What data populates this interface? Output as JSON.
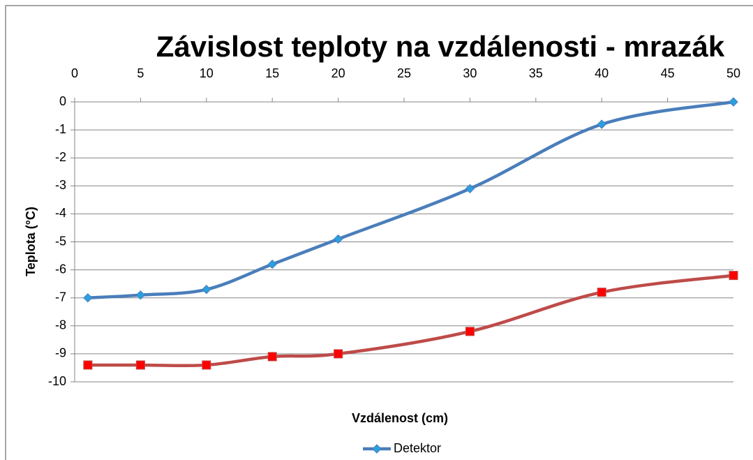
{
  "chart_data": {
    "type": "line",
    "title": "Závislost teploty na vzdálenosti - mrazák",
    "x_label": "Vzdálenost (cm)",
    "y_label": "Teplota (°C)",
    "x": [
      1,
      5,
      10,
      15,
      20,
      30,
      40,
      50
    ],
    "series": [
      {
        "name": "Detektor",
        "color": "#4a7ebb",
        "marker_color": "#2aa0e0",
        "marker": "diamond",
        "values": [
          -7,
          -6.9,
          -6.7,
          -5.8,
          -4.9,
          -3.1,
          -0.8,
          0
        ]
      },
      {
        "color": "#be4b48",
        "marker_color": "#ff0000",
        "marker": "square",
        "values": [
          -9.4,
          -9.4,
          -9.4,
          -9.1,
          -9.0,
          -8.2,
          -6.8,
          -6.2
        ]
      }
    ],
    "xlim": [
      0,
      50
    ],
    "xticks": [
      0,
      5,
      10,
      15,
      20,
      25,
      30,
      35,
      40,
      45,
      50
    ],
    "ylim": [
      -10,
      0
    ],
    "yticks": [
      0,
      -1,
      -2,
      -3,
      -4,
      -5,
      -6,
      -7,
      -8,
      -9,
      -10
    ],
    "grid": true,
    "smooth": true,
    "legend": "bottom"
  }
}
